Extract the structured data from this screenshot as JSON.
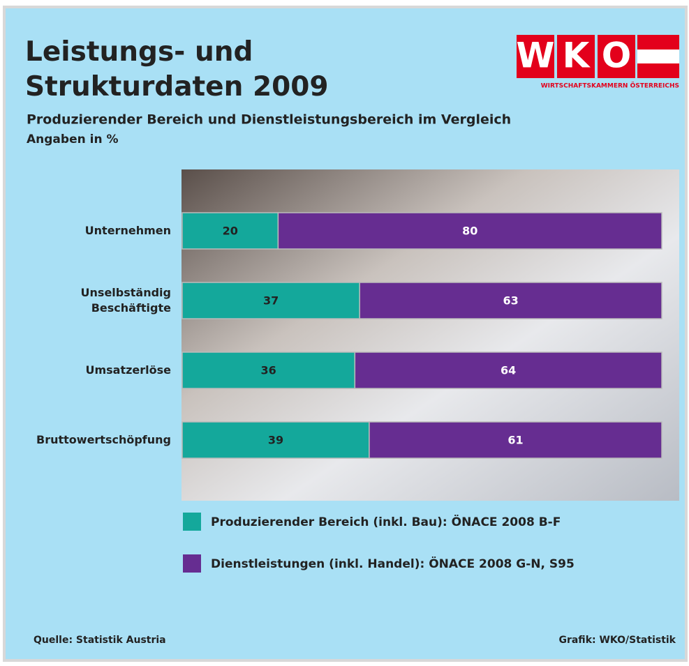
{
  "chart_data": {
    "type": "stacked-bar",
    "title": "Leistungs- und\nStrukturdaten 2009",
    "subtitle": "Produzierender Bereich und Dienstleistungsbereich im Vergleich",
    "unit_note": "Angaben in %",
    "categories": [
      "Unternehmen",
      "Unselbständig\nBeschäftigte",
      "Umsatzerlöse",
      "Bruttowertschöpfung"
    ],
    "series": [
      {
        "name": "Produzierender Bereich (inkl. Bau): ÖNACE 2008 B-F",
        "color": "#14a89b",
        "values": [
          20,
          37,
          36,
          39
        ]
      },
      {
        "name": "Dienstleistungen (inkl. Handel): ÖNACE 2008 G-N, S95",
        "color": "#662d91",
        "values": [
          80,
          63,
          64,
          61
        ]
      }
    ],
    "xlim": [
      0,
      100
    ],
    "source": "Quelle: Statistik Austria",
    "credit": "Grafik: WKO/Statistik"
  },
  "logo": {
    "letters": [
      "W",
      "K",
      "O"
    ],
    "caption": "WIRTSCHAFTSKAMMERN ÖSTERREICHS"
  }
}
